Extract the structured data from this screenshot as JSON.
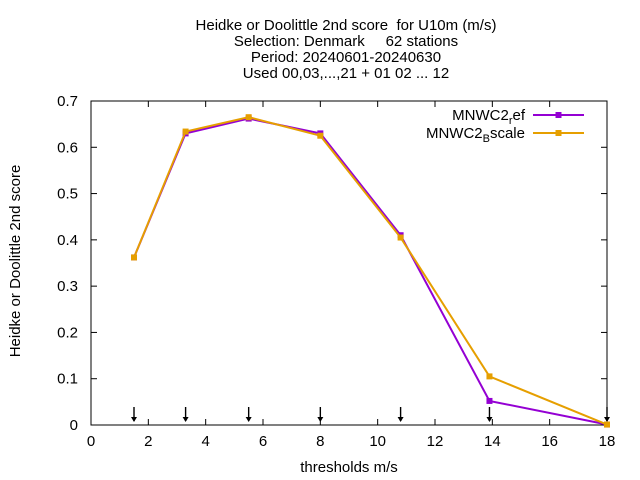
{
  "chart_data": {
    "type": "line",
    "title_lines": [
      "Heidke or Doolittle 2nd score  for U10m (m/s)",
      "Selection: Denmark     62 stations",
      "Period: 20240601-20240630",
      "Used 00,03,...,21 + 01 02 ... 12"
    ],
    "xlabel": "thresholds m/s",
    "ylabel": "Heidke or Doolittle 2nd score",
    "xlim": [
      0,
      18
    ],
    "ylim": [
      0,
      0.7
    ],
    "xticks": [
      "0",
      "2",
      "4",
      "6",
      "8",
      "10",
      "12",
      "14",
      "16",
      "18"
    ],
    "yticks": [
      "0",
      "0.1",
      "0.2",
      "0.3",
      "0.4",
      "0.5",
      "0.6",
      "0.7"
    ],
    "grid": false,
    "legend_position": "top-right",
    "series": [
      {
        "name": "MNWC2_ref",
        "legend_main": "MNWC2",
        "legend_sub": "r",
        "legend_rest": "ef",
        "color": "#9400d3",
        "x": [
          1.5,
          3.3,
          5.5,
          8.0,
          10.8,
          13.9,
          18.0
        ],
        "y": [
          0.362,
          0.63,
          0.662,
          0.63,
          0.41,
          0.052,
          0.001
        ]
      },
      {
        "name": "MNWC2_Bscale",
        "legend_main": "MNWC2",
        "legend_sub": "B",
        "legend_rest": "scale",
        "color": "#e69f00",
        "x": [
          1.5,
          3.3,
          5.5,
          8.0,
          10.8,
          13.9,
          18.0
        ],
        "y": [
          0.362,
          0.634,
          0.665,
          0.625,
          0.405,
          0.105,
          0.001
        ]
      }
    ],
    "arrow_markers_x": [
      1.5,
      3.3,
      5.5,
      8.0,
      10.8,
      13.9,
      18.0
    ]
  }
}
